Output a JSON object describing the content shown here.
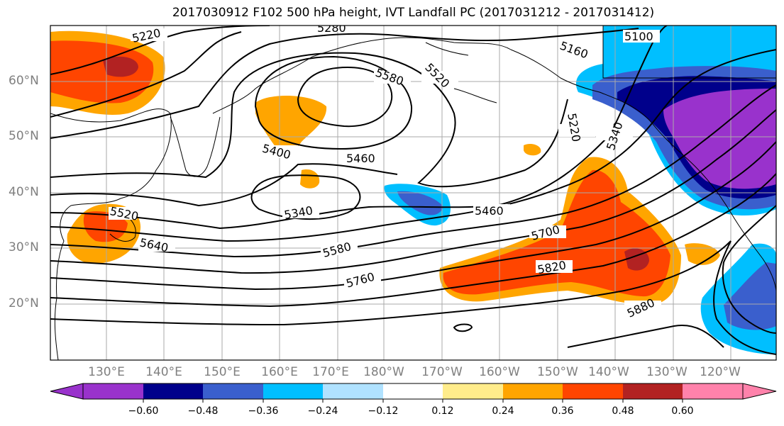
{
  "title": "2017030912 F102 500 hPa height, IVT Landfall PC (2017031212 - 2017031412)",
  "lat_labels": [
    "60°N",
    "50°N",
    "40°N",
    "30°N",
    "20°N"
  ],
  "lon_labels": [
    "130°E",
    "140°E",
    "150°E",
    "160°E",
    "170°E",
    "180°W",
    "170°W",
    "160°W",
    "150°W",
    "140°W",
    "130°W",
    "120°W"
  ],
  "contour_labels": [
    "5220",
    "5280",
    "5100",
    "5160",
    "5580",
    "5520",
    "5220",
    "5340",
    "5400",
    "5460",
    "5340",
    "5460",
    "5520",
    "5640",
    "5580",
    "5700",
    "5760",
    "5820",
    "5880"
  ],
  "colorbar": {
    "ticks": [
      "−0.60",
      "−0.48",
      "−0.36",
      "−0.24",
      "−0.12",
      "0.12",
      "0.24",
      "0.36",
      "0.48",
      "0.60"
    ],
    "colors": [
      "#9932cc",
      "#00008b",
      "#3a5fcd",
      "#00bfff",
      "#b0e2ff",
      "#ffffff",
      "#ffec8b",
      "#ffa500",
      "#ff4500",
      "#b22222",
      "#ff82ab"
    ]
  }
}
